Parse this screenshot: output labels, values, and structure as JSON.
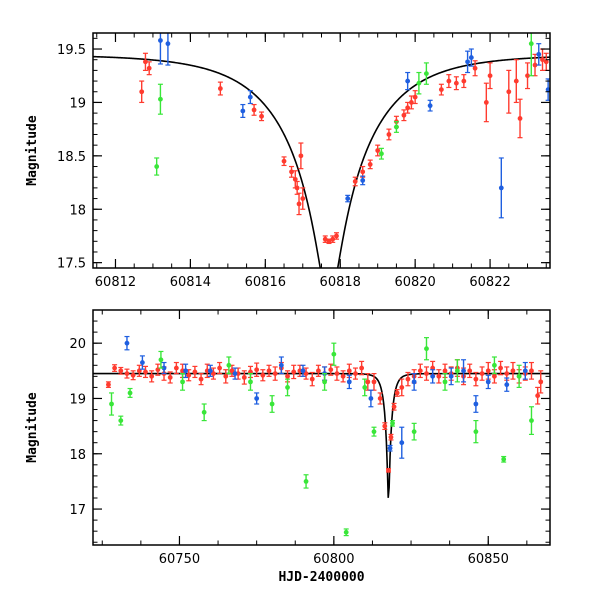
{
  "chart_data": [
    {
      "type": "scatter",
      "xlabel": "",
      "ylabel": "Magnitude",
      "xlim": [
        60811.4,
        60823.6
      ],
      "ylim": [
        19.65,
        17.45
      ],
      "y_inverted": true,
      "xticks": [
        60812,
        60814,
        60816,
        60818,
        60820,
        60822
      ],
      "yticks": [
        17.5,
        18,
        18.5,
        19,
        19.5
      ],
      "xtick_labels": [
        "60812",
        "60814",
        "60816",
        "60818",
        "60820",
        "60822"
      ],
      "ytick_labels": [
        "17.5",
        "18",
        "18.5",
        "19",
        "19.5"
      ],
      "model_curve": {
        "type": "microlensing",
        "t0": 60817.7,
        "tE": 2.2,
        "u0": 0.12,
        "baseline_mag": 19.45,
        "color": "#000000"
      },
      "series": [
        {
          "color": "#ff3b2f",
          "points": [
            [
              60812.7,
              19.1,
              0.1
            ],
            [
              60812.8,
              19.38,
              0.08
            ],
            [
              60812.9,
              19.32,
              0.06
            ],
            [
              60814.8,
              19.13,
              0.06
            ],
            [
              60815.7,
              18.93,
              0.05
            ],
            [
              60815.9,
              18.87,
              0.04
            ],
            [
              60816.5,
              18.45,
              0.04
            ],
            [
              60816.7,
              18.35,
              0.05
            ],
            [
              60816.8,
              18.28,
              0.08
            ],
            [
              60816.85,
              18.2,
              0.06
            ],
            [
              60816.9,
              18.05,
              0.1
            ],
            [
              60816.95,
              18.5,
              0.12
            ],
            [
              60817.0,
              18.1,
              0.1
            ],
            [
              60817.6,
              17.72,
              0.03
            ],
            [
              60817.7,
              17.7,
              0.02
            ],
            [
              60817.8,
              17.72,
              0.03
            ],
            [
              60817.9,
              17.75,
              0.03
            ],
            [
              60818.4,
              18.26,
              0.04
            ],
            [
              60818.6,
              18.35,
              0.05
            ],
            [
              60818.8,
              18.42,
              0.04
            ],
            [
              60819.0,
              18.55,
              0.05
            ],
            [
              60819.3,
              18.7,
              0.05
            ],
            [
              60819.5,
              18.82,
              0.05
            ],
            [
              60819.7,
              18.88,
              0.05
            ],
            [
              60819.8,
              18.95,
              0.05
            ],
            [
              60819.9,
              19.0,
              0.06
            ],
            [
              60820.0,
              19.05,
              0.06
            ],
            [
              60820.7,
              19.12,
              0.05
            ],
            [
              60820.9,
              19.2,
              0.06
            ],
            [
              60821.1,
              19.18,
              0.06
            ],
            [
              60821.3,
              19.2,
              0.06
            ],
            [
              60821.6,
              19.32,
              0.07
            ],
            [
              60821.9,
              19.0,
              0.18
            ],
            [
              60822.0,
              19.25,
              0.12
            ],
            [
              60822.5,
              19.1,
              0.2
            ],
            [
              60822.7,
              19.2,
              0.2
            ],
            [
              60822.8,
              18.85,
              0.18
            ],
            [
              60823.0,
              19.25,
              0.12
            ],
            [
              60823.2,
              19.35,
              0.1
            ],
            [
              60823.4,
              19.4,
              0.1
            ],
            [
              60823.5,
              19.38,
              0.08
            ]
          ]
        },
        {
          "color": "#1f5fe0",
          "points": [
            [
              60813.2,
              19.58,
              0.22
            ],
            [
              60813.4,
              19.55,
              0.2
            ],
            [
              60815.4,
              18.92,
              0.06
            ],
            [
              60815.6,
              19.05,
              0.06
            ],
            [
              60818.2,
              18.1,
              0.03
            ],
            [
              60818.6,
              18.27,
              0.04
            ],
            [
              60819.8,
              19.2,
              0.08
            ],
            [
              60820.4,
              18.97,
              0.05
            ],
            [
              60821.4,
              19.38,
              0.1
            ],
            [
              60821.5,
              19.42,
              0.08
            ],
            [
              60822.3,
              18.2,
              0.28
            ],
            [
              60823.3,
              19.45,
              0.1
            ],
            [
              60823.55,
              19.12,
              0.1
            ]
          ]
        },
        {
          "color": "#39e639",
          "points": [
            [
              60813.1,
              18.4,
              0.08
            ],
            [
              60813.2,
              19.03,
              0.14
            ],
            [
              60819.1,
              18.52,
              0.05
            ],
            [
              60819.5,
              18.77,
              0.05
            ],
            [
              60820.1,
              19.18,
              0.1
            ],
            [
              60820.3,
              19.27,
              0.1
            ],
            [
              60823.1,
              19.55,
              0.3
            ]
          ]
        }
      ]
    },
    {
      "type": "scatter",
      "xlabel": "HJD-2400000",
      "ylabel": "Magnitude",
      "xlim": [
        60722,
        60870
      ],
      "ylim": [
        20.6,
        16.35
      ],
      "y_inverted": true,
      "xticks": [
        60750,
        60800,
        60850
      ],
      "yticks": [
        17,
        18,
        19,
        20
      ],
      "xtick_labels": [
        "60750",
        "60800",
        "60850"
      ],
      "ytick_labels": [
        "17",
        "18",
        "19",
        "20"
      ],
      "model_curve": {
        "type": "microlensing",
        "t0": 60817.7,
        "tE": 2.2,
        "u0": 0.12,
        "baseline_mag": 19.45,
        "color": "#000000"
      },
      "series": [
        {
          "color": "#ff3b2f",
          "points": [
            [
              60727,
              19.25,
              0.05
            ],
            [
              60729,
              19.55,
              0.06
            ],
            [
              60731,
              19.5,
              0.06
            ],
            [
              60733,
              19.45,
              0.08
            ],
            [
              60735,
              19.42,
              0.08
            ],
            [
              60737,
              19.5,
              0.1
            ],
            [
              60739,
              19.48,
              0.1
            ],
            [
              60741,
              19.4,
              0.1
            ],
            [
              60743,
              19.52,
              0.1
            ],
            [
              60745,
              19.45,
              0.12
            ],
            [
              60747,
              19.38,
              0.1
            ],
            [
              60749,
              19.55,
              0.1
            ],
            [
              60751,
              19.5,
              0.12
            ],
            [
              60753,
              19.42,
              0.1
            ],
            [
              60755,
              19.48,
              0.1
            ],
            [
              60757,
              19.35,
              0.1
            ],
            [
              60759,
              19.5,
              0.12
            ],
            [
              60761,
              19.45,
              0.1
            ],
            [
              60763,
              19.55,
              0.1
            ],
            [
              60765,
              19.4,
              0.12
            ],
            [
              60767,
              19.5,
              0.1
            ],
            [
              60769,
              19.45,
              0.1
            ],
            [
              60771,
              19.38,
              0.12
            ],
            [
              60773,
              19.48,
              0.1
            ],
            [
              60775,
              19.52,
              0.12
            ],
            [
              60777,
              19.42,
              0.1
            ],
            [
              60779,
              19.5,
              0.1
            ],
            [
              60781,
              19.45,
              0.12
            ],
            [
              60783,
              19.55,
              0.1
            ],
            [
              60785,
              19.4,
              0.1
            ],
            [
              60787,
              19.48,
              0.12
            ],
            [
              60789,
              19.5,
              0.1
            ],
            [
              60791,
              19.45,
              0.1
            ],
            [
              60793,
              19.35,
              0.12
            ],
            [
              60795,
              19.5,
              0.1
            ],
            [
              60797,
              19.45,
              0.12
            ],
            [
              60799,
              19.52,
              0.1
            ],
            [
              60801,
              19.45,
              0.12
            ],
            [
              60803,
              19.4,
              0.1
            ],
            [
              60805,
              19.5,
              0.12
            ],
            [
              60807,
              19.45,
              0.1
            ],
            [
              60809,
              19.55,
              0.12
            ],
            [
              60811,
              19.3,
              0.15
            ],
            [
              60813,
              19.3,
              0.15
            ],
            [
              60815,
              19.0,
              0.1
            ],
            [
              60816.5,
              18.5,
              0.06
            ],
            [
              60817.7,
              17.7,
              0.03
            ],
            [
              60818.5,
              18.3,
              0.05
            ],
            [
              60819.5,
              18.85,
              0.06
            ],
            [
              60820.5,
              19.1,
              0.06
            ],
            [
              60822,
              19.2,
              0.15
            ],
            [
              60824,
              19.35,
              0.12
            ],
            [
              60826,
              19.4,
              0.12
            ],
            [
              60828,
              19.5,
              0.12
            ],
            [
              60830,
              19.45,
              0.12
            ],
            [
              60832,
              19.55,
              0.12
            ],
            [
              60834,
              19.4,
              0.12
            ],
            [
              60836,
              19.5,
              0.12
            ],
            [
              60838,
              19.45,
              0.12
            ],
            [
              60840,
              19.55,
              0.15
            ],
            [
              60842,
              19.4,
              0.15
            ],
            [
              60844,
              19.5,
              0.12
            ],
            [
              60846,
              19.35,
              0.12
            ],
            [
              60848,
              19.45,
              0.12
            ],
            [
              60850,
              19.5,
              0.15
            ],
            [
              60852,
              19.4,
              0.12
            ],
            [
              60854,
              19.55,
              0.12
            ],
            [
              60856,
              19.45,
              0.12
            ],
            [
              60858,
              19.5,
              0.15
            ],
            [
              60860,
              19.4,
              0.12
            ],
            [
              60862,
              19.45,
              0.12
            ],
            [
              60864,
              19.5,
              0.15
            ],
            [
              60866,
              19.05,
              0.15
            ],
            [
              60867,
              19.3,
              0.2
            ]
          ]
        },
        {
          "color": "#1f5fe0",
          "points": [
            [
              60733,
              20.0,
              0.12
            ],
            [
              60738,
              19.65,
              0.12
            ],
            [
              60745,
              19.55,
              0.1
            ],
            [
              60752,
              19.5,
              0.12
            ],
            [
              60760,
              19.5,
              0.1
            ],
            [
              60768,
              19.45,
              0.1
            ],
            [
              60775,
              19.0,
              0.1
            ],
            [
              60783,
              19.6,
              0.15
            ],
            [
              60790,
              19.5,
              0.1
            ],
            [
              60797,
              19.45,
              0.12
            ],
            [
              60805,
              19.3,
              0.12
            ],
            [
              60812,
              19.0,
              0.15
            ],
            [
              60818.2,
              18.1,
              0.05
            ],
            [
              60822,
              18.2,
              0.28
            ],
            [
              60826,
              19.3,
              0.15
            ],
            [
              60832,
              19.4,
              0.12
            ],
            [
              60838,
              19.4,
              0.15
            ],
            [
              60842,
              19.5,
              0.2
            ],
            [
              60846,
              18.9,
              0.15
            ],
            [
              60850,
              19.3,
              0.12
            ],
            [
              60856,
              19.25,
              0.12
            ],
            [
              60862,
              19.5,
              0.15
            ]
          ]
        },
        {
          "color": "#39e639",
          "points": [
            [
              60728,
              18.9,
              0.2
            ],
            [
              60731,
              18.6,
              0.08
            ],
            [
              60734,
              19.1,
              0.08
            ],
            [
              60744,
              19.7,
              0.15
            ],
            [
              60751,
              19.3,
              0.15
            ],
            [
              60758,
              18.75,
              0.15
            ],
            [
              60766,
              19.6,
              0.15
            ],
            [
              60773,
              19.3,
              0.15
            ],
            [
              60780,
              18.9,
              0.15
            ],
            [
              60785,
              19.2,
              0.15
            ],
            [
              60791,
              17.5,
              0.12
            ],
            [
              60797,
              19.3,
              0.15
            ],
            [
              60800,
              19.8,
              0.2
            ],
            [
              60804,
              16.58,
              0.06
            ],
            [
              60810,
              19.2,
              0.15
            ],
            [
              60813,
              18.4,
              0.08
            ],
            [
              60819,
              18.55,
              0.05
            ],
            [
              60826,
              18.4,
              0.15
            ],
            [
              60830,
              19.9,
              0.2
            ],
            [
              60836,
              19.3,
              0.15
            ],
            [
              60840,
              19.5,
              0.2
            ],
            [
              60846,
              18.4,
              0.2
            ],
            [
              60852,
              19.6,
              0.15
            ],
            [
              60855,
              17.9,
              0.05
            ],
            [
              60860,
              19.4,
              0.2
            ],
            [
              60864,
              18.6,
              0.25
            ]
          ]
        }
      ]
    }
  ]
}
